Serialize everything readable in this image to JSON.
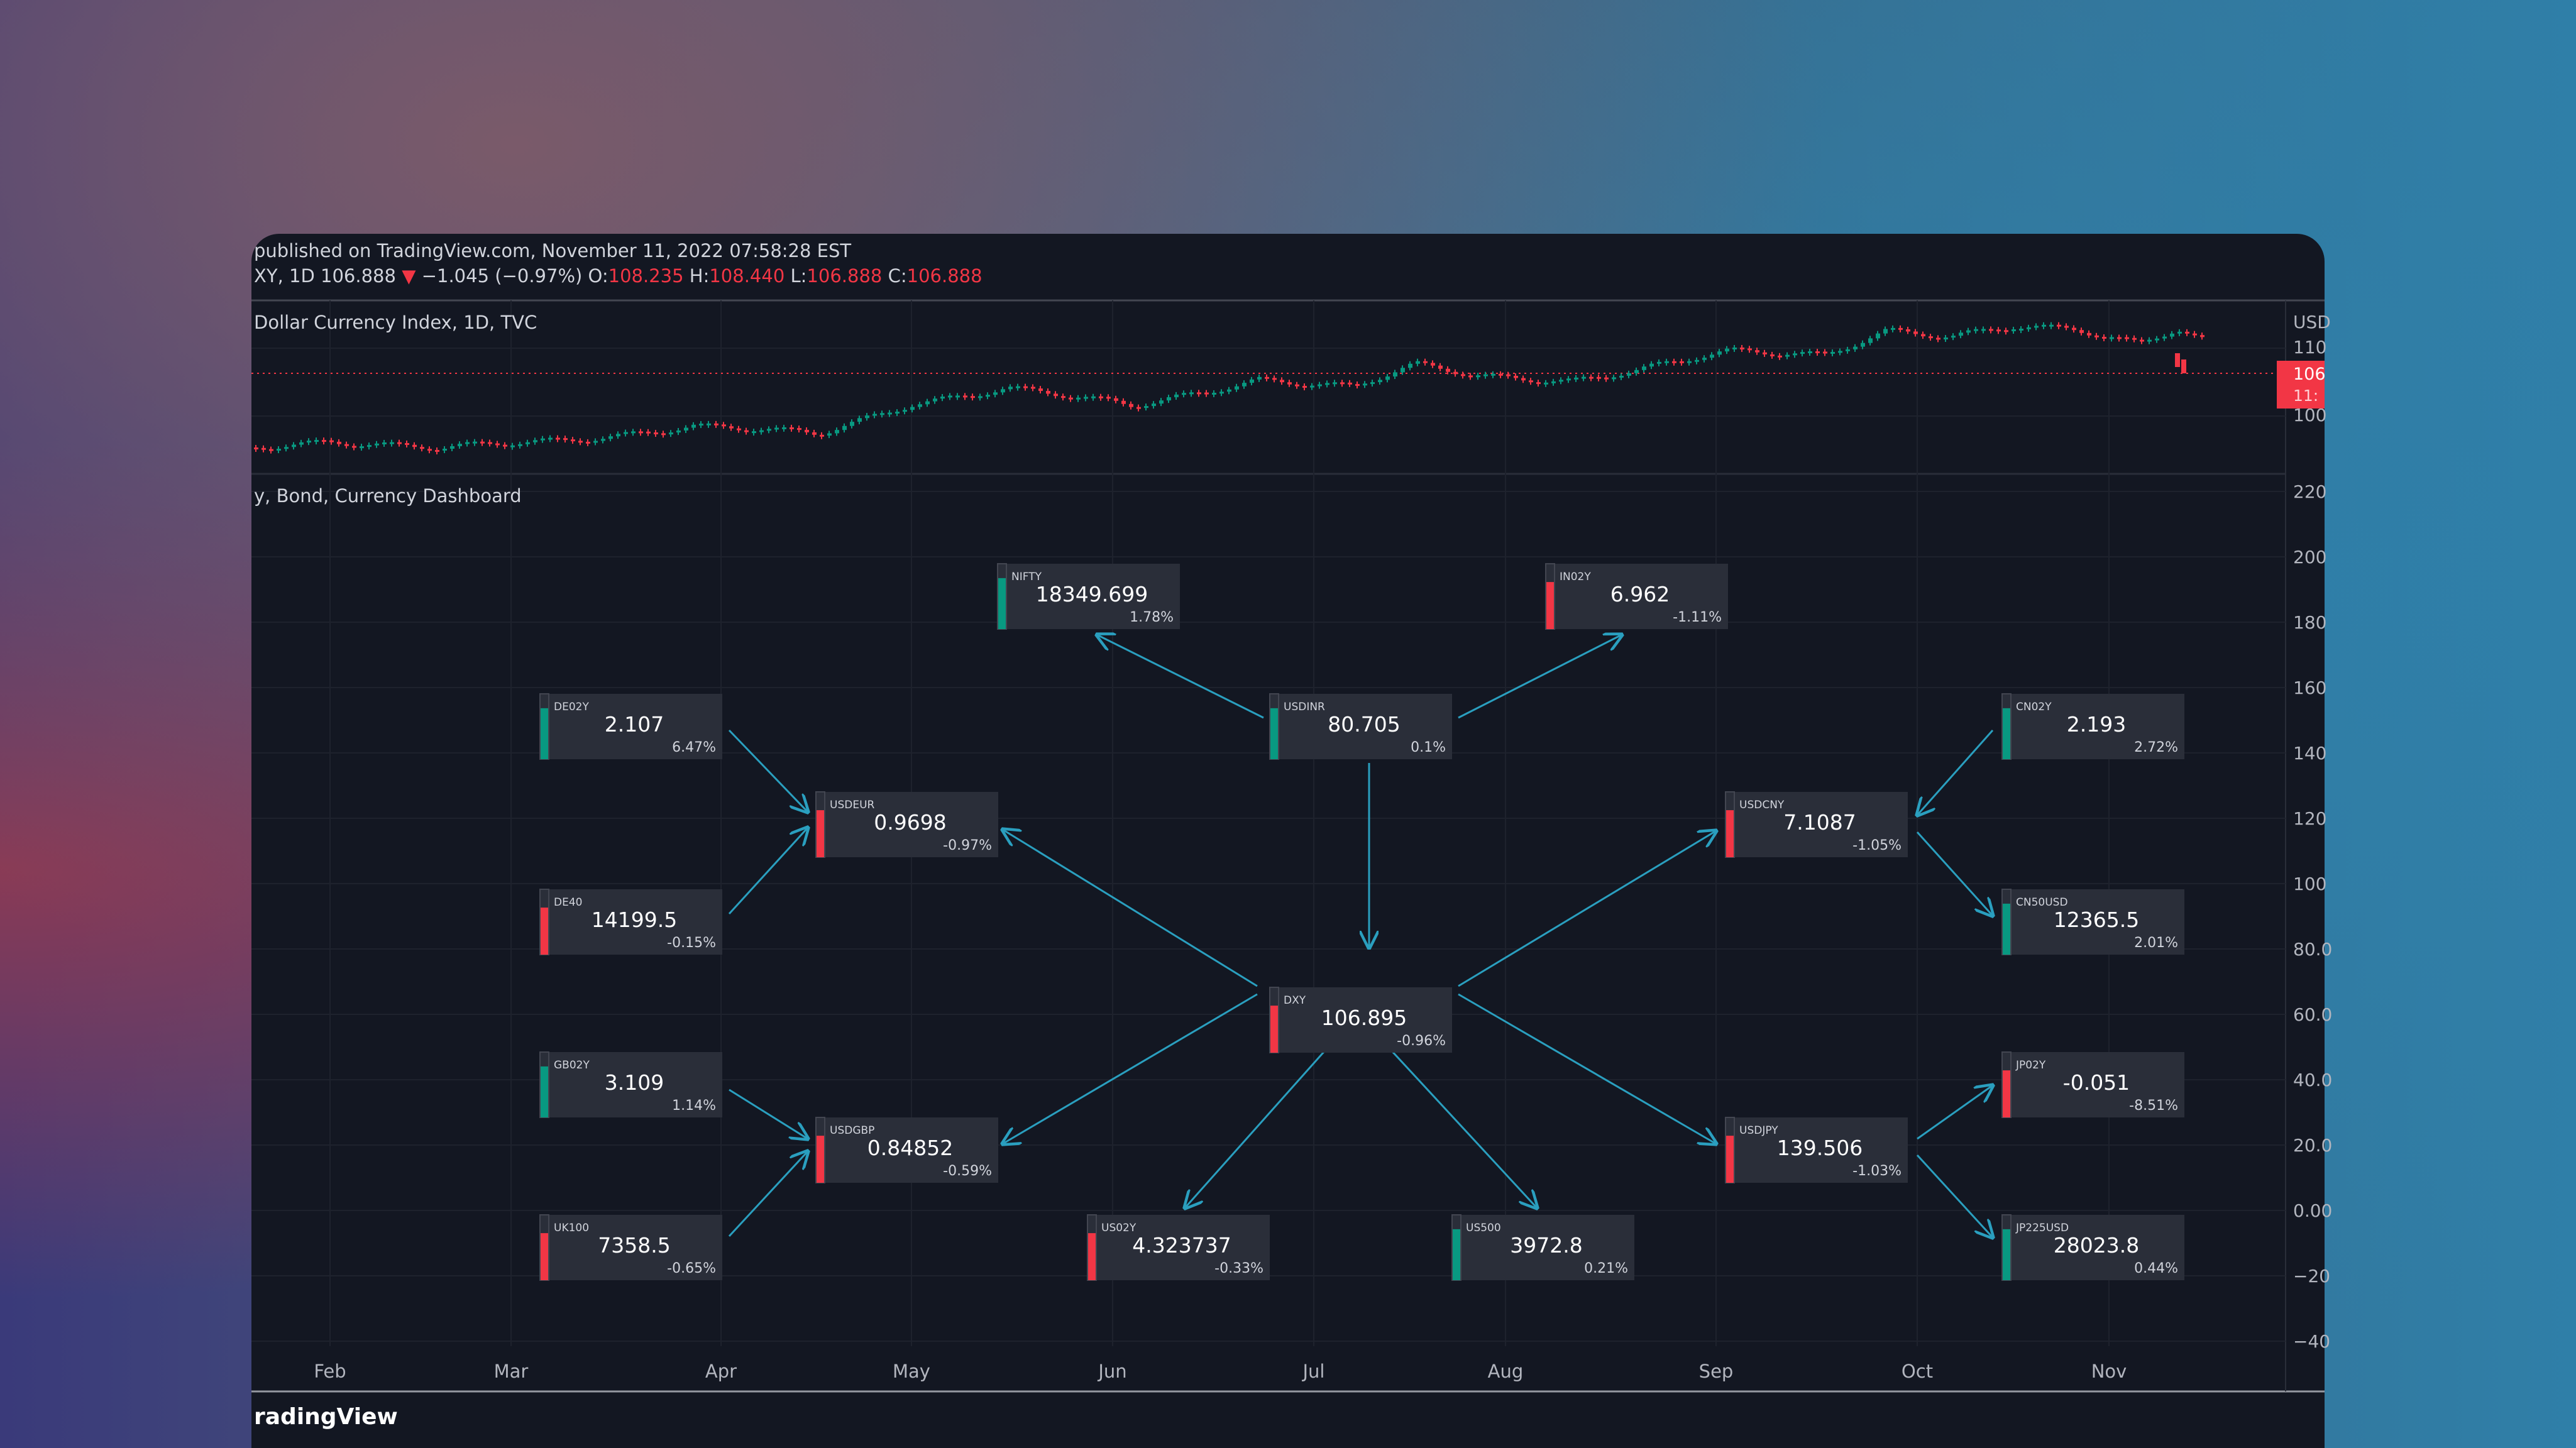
{
  "header": {
    "published": "published on TradingView.com, November 11, 2022 07:58:28 EST",
    "symbol": "XY, 1D",
    "price": "106.888",
    "arrow": "▼",
    "change": "−1.045 (−0.97%)",
    "o_label": "O:",
    "o_value": "108.235",
    "h_label": "H:",
    "h_value": "108.440",
    "l_label": "L:",
    "l_value": "106.888",
    "c_label": "C:",
    "c_value": "106.888"
  },
  "pane1": {
    "title": "Dollar Currency Index, 1D, TVC",
    "currency": "USD",
    "price_tag": "106",
    "price_tag_sub": "11:",
    "ticks": [
      "110",
      "100"
    ]
  },
  "pane2": {
    "title": "y, Bond, Currency Dashboard",
    "ticks": [
      "220",
      "200",
      "180",
      "160",
      "140",
      "120",
      "100",
      "80.0",
      "60.0",
      "40.0",
      "20.0",
      "0.00",
      "−20",
      "−40"
    ]
  },
  "months": [
    "Feb",
    "Mar",
    "Apr",
    "May",
    "Jun",
    "Jul",
    "Aug",
    "Sep",
    "Oct",
    "Nov"
  ],
  "footer": {
    "brand": "radingView"
  },
  "colors": {
    "bull": "#089981",
    "bear": "#f23645",
    "arrow": "#2a9fbf",
    "box": "#2a2e39"
  },
  "dashboard": {
    "nodes": [
      {
        "id": "NIFTY",
        "value": "18349.699",
        "change": "1.78%",
        "trend": "up"
      },
      {
        "id": "IN02Y",
        "value": "6.962",
        "change": "-1.11%",
        "trend": "down"
      },
      {
        "id": "DE02Y",
        "value": "2.107",
        "change": "6.47%",
        "trend": "up"
      },
      {
        "id": "USDINR",
        "value": "80.705",
        "change": "0.1%",
        "trend": "up"
      },
      {
        "id": "CN02Y",
        "value": "2.193",
        "change": "2.72%",
        "trend": "up"
      },
      {
        "id": "USDEUR",
        "value": "0.9698",
        "change": "-0.97%",
        "trend": "down"
      },
      {
        "id": "USDCNY",
        "value": "7.1087",
        "change": "-1.05%",
        "trend": "down"
      },
      {
        "id": "DE40",
        "value": "14199.5",
        "change": "-0.15%",
        "trend": "down"
      },
      {
        "id": "CN50USD",
        "value": "12365.5",
        "change": "2.01%",
        "trend": "up"
      },
      {
        "id": "DXY",
        "value": "106.895",
        "change": "-0.96%",
        "trend": "down"
      },
      {
        "id": "GB02Y",
        "value": "3.109",
        "change": "1.14%",
        "trend": "up"
      },
      {
        "id": "JP02Y",
        "value": "-0.051",
        "change": "-8.51%",
        "trend": "down"
      },
      {
        "id": "USDGBP",
        "value": "0.84852",
        "change": "-0.59%",
        "trend": "down"
      },
      {
        "id": "USDJPY",
        "value": "139.506",
        "change": "-1.03%",
        "trend": "down"
      },
      {
        "id": "UK100",
        "value": "7358.5",
        "change": "-0.65%",
        "trend": "down"
      },
      {
        "id": "US02Y",
        "value": "4.323737",
        "change": "-0.33%",
        "trend": "down"
      },
      {
        "id": "US500",
        "value": "3972.8",
        "change": "0.21%",
        "trend": "up"
      },
      {
        "id": "JP225USD",
        "value": "28023.8",
        "change": "0.44%",
        "trend": "up"
      }
    ]
  }
}
